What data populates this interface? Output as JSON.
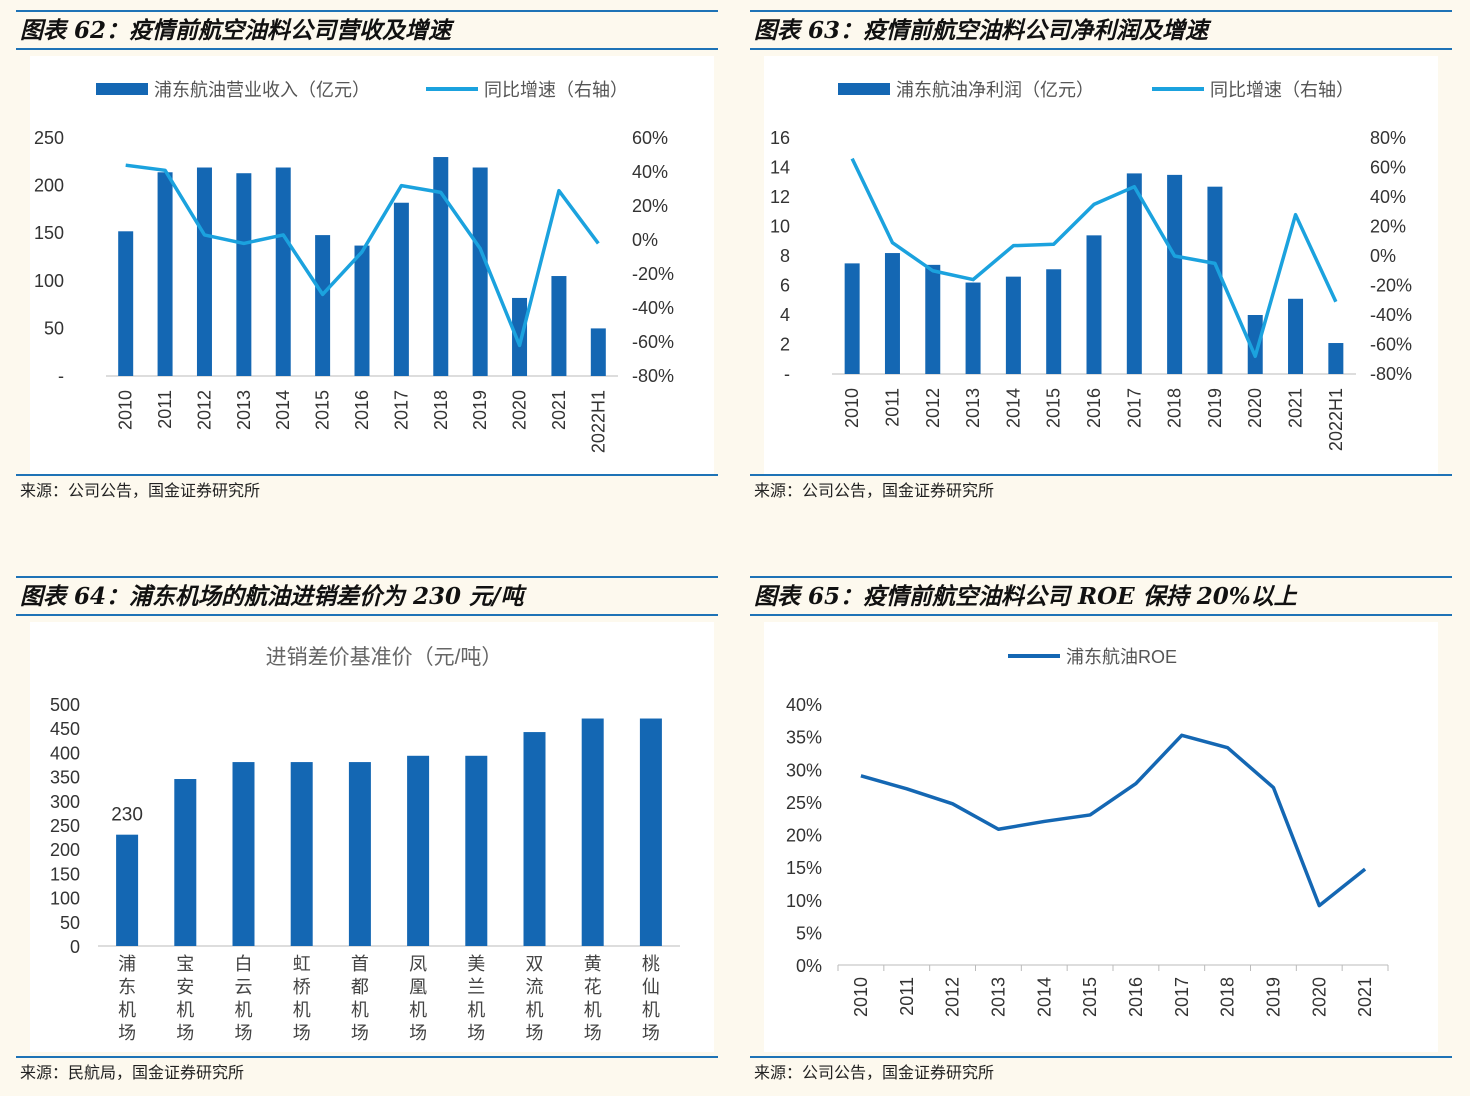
{
  "colors": {
    "bar": "#1467b3",
    "line_light": "#1ba2de",
    "line_dark": "#1467b3",
    "rule": "#1e73b6"
  },
  "chart_data": [
    {
      "id": "c62",
      "type": "bar+line",
      "title": "图表 62：疫情前航空油料公司营收及增速",
      "source": "来源：公司公告，国金证券研究所",
      "categories": [
        "2010",
        "2011",
        "2012",
        "2013",
        "2014",
        "2015",
        "2016",
        "2017",
        "2018",
        "2019",
        "2020",
        "2021",
        "2022H1"
      ],
      "series": [
        {
          "name": "浦东航油营业收入（亿元）",
          "kind": "bar",
          "axis": "left",
          "values": [
            152,
            214,
            219,
            213,
            219,
            148,
            137,
            182,
            230,
            219,
            82,
            105,
            50
          ]
        },
        {
          "name": "同比增速（右轴）",
          "kind": "line",
          "axis": "right",
          "values": [
            44,
            41,
            3,
            -2,
            3,
            -32,
            -7,
            32,
            28,
            -5,
            -62,
            29,
            -2
          ]
        }
      ],
      "y_left": {
        "min": 0,
        "max": 250,
        "ticks": [
          "-",
          "50",
          "100",
          "150",
          "200",
          "250"
        ]
      },
      "y_right": {
        "min": -80,
        "max": 60,
        "ticks": [
          "-80%",
          "-60%",
          "-40%",
          "-20%",
          "0%",
          "20%",
          "40%",
          "60%"
        ]
      }
    },
    {
      "id": "c63",
      "type": "bar+line",
      "title": "图表 63：疫情前航空油料公司净利润及增速",
      "source": "来源：公司公告，国金证券研究所",
      "categories": [
        "2010",
        "2011",
        "2012",
        "2013",
        "2014",
        "2015",
        "2016",
        "2017",
        "2018",
        "2019",
        "2020",
        "2021",
        "2022H1"
      ],
      "series": [
        {
          "name": "浦东航油净利润（亿元）",
          "kind": "bar",
          "axis": "left",
          "values": [
            7.5,
            8.2,
            7.4,
            6.2,
            6.6,
            7.1,
            9.4,
            13.6,
            13.5,
            12.7,
            4.0,
            5.1,
            2.1
          ]
        },
        {
          "name": "同比增速（右轴）",
          "kind": "line",
          "axis": "right",
          "values": [
            66,
            9,
            -10,
            -16,
            7,
            8,
            35,
            47,
            0,
            -5,
            -68,
            28,
            -31
          ]
        }
      ],
      "y_left": {
        "min": 0,
        "max": 16,
        "ticks": [
          "-",
          "2",
          "4",
          "6",
          "8",
          "10",
          "12",
          "14",
          "16"
        ]
      },
      "y_right": {
        "min": -80,
        "max": 80,
        "ticks": [
          "-80%",
          "-60%",
          "-40%",
          "-20%",
          "0%",
          "20%",
          "40%",
          "60%",
          "80%"
        ]
      }
    },
    {
      "id": "c64",
      "type": "bar",
      "title": "图表 64：浦东机场的航油进销差价为 230 元/吨",
      "source": "来源：民航局，国金证券研究所",
      "chart_title": "进销差价基准价（元/吨）",
      "categories": [
        "浦东机场",
        "宝安机场",
        "白云机场",
        "虹桥机场",
        "首都机场",
        "凤凰机场",
        "美兰机场",
        "双流机场",
        "黄花机场",
        "桃仙机场"
      ],
      "values": [
        230,
        345,
        380,
        380,
        380,
        393,
        393,
        442,
        470,
        470
      ],
      "data_labels": [
        "230",
        "",
        "",
        "",
        "",
        "",
        "",
        "",
        "",
        ""
      ],
      "y_left": {
        "min": 0,
        "max": 500,
        "ticks": [
          "0",
          "50",
          "100",
          "150",
          "200",
          "250",
          "300",
          "350",
          "400",
          "450",
          "500"
        ]
      }
    },
    {
      "id": "c65",
      "type": "line",
      "title": "图表 65：疫情前航空油料公司 ROE 保持 20%以上",
      "source": "来源：公司公告，国金证券研究所",
      "categories": [
        "2010",
        "2011",
        "2012",
        "2013",
        "2014",
        "2015",
        "2016",
        "2017",
        "2018",
        "2019",
        "2020",
        "2021"
      ],
      "series": [
        {
          "name": "浦东航油ROE",
          "values": [
            29,
            27,
            24.7,
            20.8,
            22,
            23,
            27.8,
            35.2,
            33.3,
            27.2,
            9.1,
            14.7
          ]
        }
      ],
      "y_left": {
        "min": 0,
        "max": 40,
        "ticks": [
          "0%",
          "5%",
          "10%",
          "15%",
          "20%",
          "25%",
          "30%",
          "35%",
          "40%"
        ]
      }
    }
  ]
}
